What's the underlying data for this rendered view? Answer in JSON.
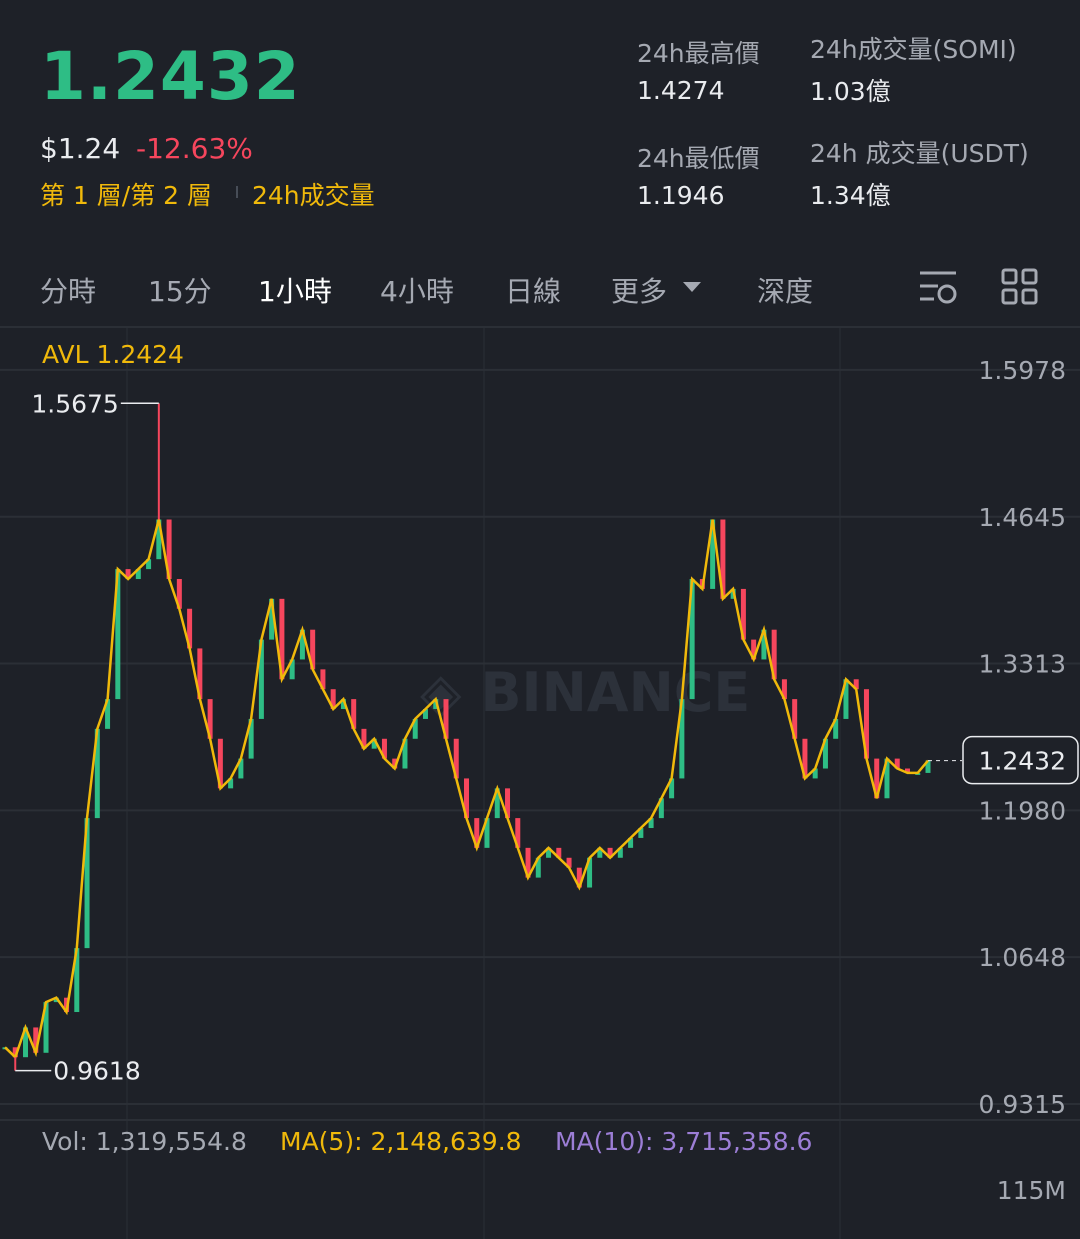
{
  "header": {
    "price": "1.2432",
    "usd_price": "$1.24",
    "change": "-12.63%",
    "tags": [
      "第 1 層/第 2 層",
      "24h成交量"
    ],
    "stats": [
      {
        "label": "24h最高價",
        "value": "1.4274"
      },
      {
        "label": "24h成交量(SOMI)",
        "value": "1.03億"
      },
      {
        "label": "24h最低價",
        "value": "1.1946"
      },
      {
        "label": "24h 成交量(USDT)",
        "value": "1.34億"
      }
    ]
  },
  "tabs": [
    "分時",
    "15分",
    "1小時",
    "4小時",
    "日線",
    "更多",
    "深度"
  ],
  "chart_data": {
    "type": "candlestick",
    "avl_label": "AVL 1.2424",
    "current_price": 1.2432,
    "max_marker": 1.5675,
    "min_marker": 0.9618,
    "ylim": [
      0.917,
      1.634
    ],
    "yticks": [
      1.5978,
      1.4645,
      1.3313,
      {
        "value": 1.198,
        "label": "1.1980"
      },
      1.0648,
      0.9315
    ],
    "up_color": "#2ebd85",
    "down_color": "#f6465d",
    "line_color": "#f0b90b",
    "close": [
      0.983,
      0.974,
      1.001,
      0.978,
      1.024,
      1.028,
      1.015,
      1.073,
      1.191,
      1.272,
      1.299,
      1.417,
      1.408,
      1.417,
      1.426,
      1.462,
      1.408,
      1.381,
      1.345,
      1.299,
      1.263,
      1.218,
      1.227,
      1.245,
      1.281,
      1.353,
      1.39,
      1.317,
      1.335,
      1.362,
      1.326,
      1.308,
      1.29,
      1.299,
      1.272,
      1.254,
      1.263,
      1.245,
      1.236,
      1.263,
      1.281,
      1.29,
      1.299,
      1.263,
      1.227,
      1.191,
      1.164,
      1.191,
      1.218,
      1.191,
      1.164,
      1.137,
      1.155,
      1.164,
      1.155,
      1.146,
      1.128,
      1.155,
      1.164,
      1.155,
      1.164,
      1.173,
      1.182,
      1.191,
      1.209,
      1.227,
      1.299,
      1.408,
      1.399,
      1.462,
      1.39,
      1.399,
      1.353,
      1.335,
      1.362,
      1.317,
      1.299,
      1.263,
      1.227,
      1.236,
      1.263,
      1.281,
      1.317,
      1.308,
      1.245,
      1.209,
      1.245,
      1.236,
      1.232,
      1.232,
      1.2432
    ]
  },
  "volume": {
    "stats": [
      "Vol: 1,319,554.8",
      "MA(5): 2,148,639.8",
      "MA(10): 3,715,358.6"
    ],
    "yticks": [
      {
        "value": 115000000,
        "label": "115M"
      }
    ]
  }
}
